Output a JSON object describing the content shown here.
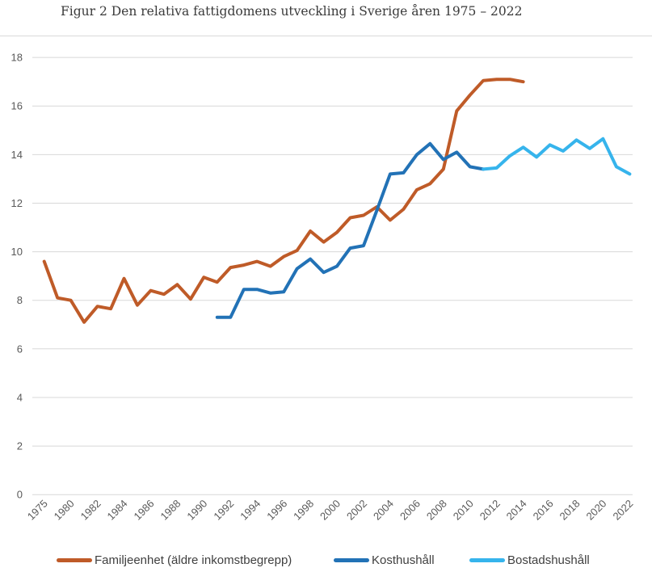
{
  "header": {
    "title": "Figur 2 Den relativa fattigdomens utveckling i Sverige åren 1975 – 2022"
  },
  "styles": {
    "gridline_color": "#d8d8d8",
    "divider_color": "#d9d9d9",
    "tick_label_color": "#595959",
    "legend_text_color": "#3f3f3f",
    "title_color": "#3a3a3a",
    "background": "#ffffff"
  },
  "chart_data": {
    "type": "line",
    "title": "Figur 2 Den relativa fattigdomens utveckling i Sverige åren 1975 – 2022",
    "xlabel": "",
    "ylabel": "",
    "ylim": [
      0,
      18
    ],
    "y_ticks": [
      18,
      16,
      14,
      12,
      10,
      8,
      6,
      4,
      2,
      0
    ],
    "grid": "horizontal",
    "legend_position": "bottom",
    "categories": [
      "1975",
      "1978",
      "1980",
      "1981",
      "1982",
      "1983",
      "1984",
      "1985",
      "1986",
      "1987",
      "1988",
      "1989",
      "1990",
      "1991",
      "1992",
      "1993",
      "1994",
      "1995",
      "1996",
      "1997",
      "1998",
      "1999",
      "2000",
      "2001",
      "2002",
      "2003",
      "2004",
      "2005",
      "2006",
      "2007",
      "2008",
      "2009",
      "2010",
      "2011",
      "2012",
      "2013",
      "2014",
      "2015",
      "2016",
      "2017",
      "2018",
      "2019",
      "2020",
      "2021",
      "2022"
    ],
    "x_tick_labels": [
      "1975",
      "1980",
      "1982",
      "1984",
      "1986",
      "1988",
      "1990",
      "1992",
      "1994",
      "1996",
      "1998",
      "2000",
      "2002",
      "2004",
      "2006",
      "2008",
      "2010",
      "2012",
      "2014",
      "2016",
      "2018",
      "2020",
      "2022"
    ],
    "series": [
      {
        "name": "Familjeenhet (äldre inkomstbegrepp)",
        "color": "#bf5b28",
        "values": [
          9.6,
          8.1,
          8.0,
          7.1,
          7.75,
          7.65,
          8.9,
          7.8,
          8.4,
          8.25,
          8.65,
          8.05,
          8.95,
          8.75,
          9.35,
          9.45,
          9.6,
          9.4,
          9.8,
          10.05,
          10.85,
          10.4,
          10.8,
          11.4,
          11.5,
          11.85,
          11.3,
          11.75,
          12.55,
          12.8,
          13.4,
          15.8,
          16.45,
          17.05,
          17.1,
          17.1,
          17.0,
          null,
          null,
          null,
          null,
          null,
          null,
          null,
          null
        ]
      },
      {
        "name": "Kosthushåll",
        "color": "#2272b6",
        "values": [
          null,
          null,
          null,
          null,
          null,
          null,
          null,
          null,
          null,
          null,
          null,
          null,
          null,
          7.3,
          7.3,
          8.45,
          8.45,
          8.3,
          8.35,
          9.3,
          9.7,
          9.15,
          9.4,
          10.15,
          10.25,
          11.7,
          13.2,
          13.25,
          14.0,
          14.45,
          13.8,
          14.1,
          13.5,
          13.4,
          null,
          null,
          null,
          null,
          null,
          null,
          null,
          null,
          null,
          null,
          null
        ]
      },
      {
        "name": "Bostadshushåll",
        "color": "#36b4ec",
        "values": [
          null,
          null,
          null,
          null,
          null,
          null,
          null,
          null,
          null,
          null,
          null,
          null,
          null,
          null,
          null,
          null,
          null,
          null,
          null,
          null,
          null,
          null,
          null,
          null,
          null,
          null,
          null,
          null,
          null,
          null,
          null,
          null,
          null,
          13.4,
          13.45,
          13.95,
          14.3,
          13.9,
          14.4,
          14.15,
          14.6,
          14.25,
          14.65,
          13.5,
          13.2
        ]
      }
    ]
  }
}
